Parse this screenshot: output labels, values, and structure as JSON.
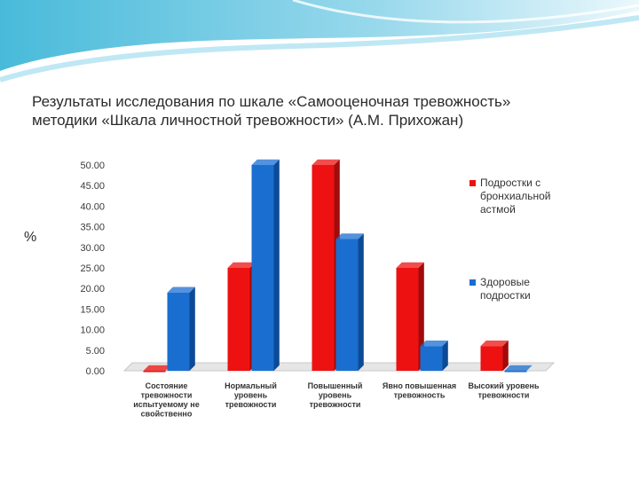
{
  "slide": {
    "title_line1": "Результаты исследования по шкале «Самооценочная тревожность»",
    "title_line2": "методики «Шкала личностной тревожности» (А.М. Прихожан)",
    "y_unit": "%"
  },
  "colors": {
    "series1": "#ee1111",
    "series2": "#1a6ed0",
    "accent": "#38b6d8"
  },
  "chart_data": {
    "type": "bar",
    "categories": [
      [
        "Состояние",
        "тревожности",
        "испытуемому не",
        "свойственно"
      ],
      [
        "Нормальный",
        "уровень",
        "тревожности"
      ],
      [
        "Повышенный",
        "уровень",
        "тревожности"
      ],
      [
        "Явно повышенная",
        "тревожность"
      ],
      [
        "Высокий уровень",
        "тревожности"
      ]
    ],
    "series": [
      {
        "name": [
          "Подростки с",
          "бронхиальной",
          "астмой"
        ],
        "values": [
          0,
          25,
          50,
          25,
          6
        ]
      },
      {
        "name": [
          "Здоровые",
          "подростки"
        ],
        "values": [
          19,
          50,
          32,
          6,
          0
        ]
      }
    ],
    "ylim": [
      0,
      50
    ],
    "yticks": [
      "0.00",
      "5.00",
      "10.00",
      "15.00",
      "20.00",
      "25.00",
      "30.00",
      "35.00",
      "40.00",
      "45.00",
      "50.00"
    ],
    "legend_position": "right",
    "grid": false
  }
}
